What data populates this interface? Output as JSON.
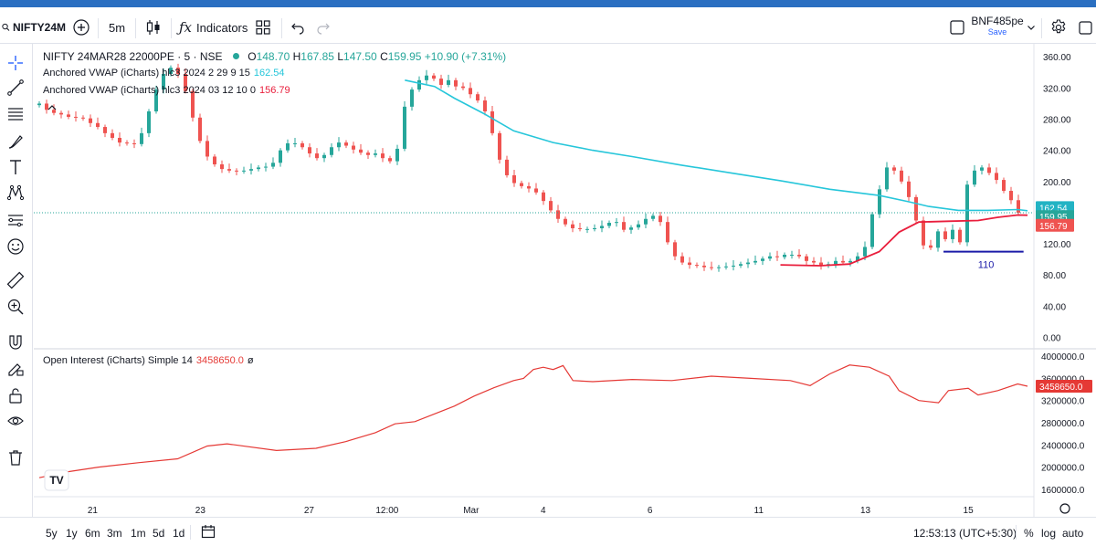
{
  "toolbar": {
    "symbol": "NIFTY24M",
    "interval": "5m",
    "indicators_label": "Indicators",
    "layout_name": "BNF485pe",
    "save_label": "Save"
  },
  "legend": {
    "title": "NIFTY 24MAR28 22000PE · 5 · NSE",
    "ohlc": {
      "o_label": "O",
      "o": "148.70",
      "h_label": "H",
      "h": "167.85",
      "l_label": "L",
      "l": "147.50",
      "c_label": "C",
      "c": "159.95",
      "change": "+10.90 (+7.31%)"
    },
    "vwap1": {
      "label": "Anchored VWAP (iCharts) hlc3 2024 2 29 9 15",
      "value": "162.54"
    },
    "vwap2": {
      "label": "Anchored VWAP (iCharts) hlc3 2024 03 12 10 0",
      "value": "156.79"
    },
    "oi": {
      "label": "Open Interest (iCharts) Simple 14",
      "value": "3458650.0",
      "suffix": "ø"
    }
  },
  "price_labels": {
    "vwap1": "162.54",
    "close": "159.95",
    "vwap2": "156.79",
    "oi": "3458650.0"
  },
  "annotation": {
    "level_label": "110",
    "level_value": 110
  },
  "watermark": "TV",
  "colors": {
    "up": "#26a69a",
    "down": "#ef5350",
    "vwap1": "#26c6da",
    "vwap2": "#e91e3c",
    "oi": "#e53935",
    "hline": "#1a1aa8",
    "close_line": "#26a69a"
  },
  "chart_data": {
    "type": "candlestick",
    "x_ticks": [
      "21",
      "23",
      "27",
      "12:00",
      "Mar",
      "4",
      "6",
      "11",
      "13",
      "15"
    ],
    "price_axis": {
      "ticks": [
        "360.00",
        "320.00",
        "280.00",
        "240.00",
        "200.00",
        "160.00",
        "120.00",
        "80.00",
        "40.00",
        "0.00"
      ],
      "ylim": [
        -10,
        372
      ]
    },
    "oi_axis": {
      "ticks": [
        "4000000.0",
        "3600000.0",
        "3200000.0",
        "2800000.0",
        "2400000.0",
        "2000000.0",
        "1600000.0"
      ],
      "ylim": [
        1500000,
        4100000
      ]
    },
    "price_close": [
      300,
      292,
      288,
      286,
      283,
      282,
      281,
      275,
      270,
      262,
      256,
      250,
      249,
      248,
      262,
      290,
      318,
      338,
      346,
      338,
      316,
      282,
      252,
      232,
      222,
      216,
      214,
      213,
      214,
      216,
      218,
      219,
      224,
      240,
      249,
      249,
      244,
      236,
      230,
      234,
      244,
      250,
      246,
      241,
      237,
      234,
      236,
      230,
      226,
      242,
      296,
      318,
      330,
      336,
      332,
      324,
      330,
      322,
      320,
      312,
      304,
      290,
      262,
      228,
      208,
      198,
      194,
      191,
      186,
      175,
      163,
      152,
      145,
      140,
      139,
      139,
      140,
      143,
      147,
      148,
      138,
      141,
      145,
      152,
      156,
      148,
      122,
      104,
      96,
      93,
      92,
      90,
      89,
      90,
      91,
      92,
      94,
      96,
      98,
      101,
      104,
      103,
      106,
      106,
      104,
      98,
      96,
      92,
      94,
      98,
      96,
      98,
      104,
      116,
      158,
      190,
      218,
      214,
      200,
      180,
      150,
      118,
      115,
      136,
      126,
      138,
      122,
      196,
      214,
      218,
      211,
      202,
      188,
      176,
      159.95
    ],
    "vwap1": [
      [
        0.37,
        330
      ],
      [
        0.4,
        322
      ],
      [
        0.42,
        307
      ],
      [
        0.45,
        287
      ],
      [
        0.48,
        265
      ],
      [
        0.52,
        250
      ],
      [
        0.56,
        240
      ],
      [
        0.6,
        232
      ],
      [
        0.65,
        221
      ],
      [
        0.7,
        211
      ],
      [
        0.75,
        201
      ],
      [
        0.8,
        190
      ],
      [
        0.85,
        182
      ],
      [
        0.88,
        174
      ],
      [
        0.9,
        168
      ],
      [
        0.93,
        163
      ],
      [
        0.96,
        163
      ],
      [
        0.99,
        164
      ],
      [
        1.0,
        162.54
      ]
    ],
    "vwap2": [
      [
        0.75,
        93
      ],
      [
        0.79,
        92
      ],
      [
        0.82,
        94
      ],
      [
        0.85,
        110
      ],
      [
        0.87,
        135
      ],
      [
        0.89,
        148
      ],
      [
        0.92,
        149
      ],
      [
        0.95,
        150
      ],
      [
        0.97,
        154
      ],
      [
        0.99,
        157
      ],
      [
        1.0,
        156.79
      ]
    ],
    "oi": [
      [
        0.0,
        1810000
      ],
      [
        0.03,
        1920000
      ],
      [
        0.06,
        2000000
      ],
      [
        0.1,
        2080000
      ],
      [
        0.14,
        2150000
      ],
      [
        0.17,
        2380000
      ],
      [
        0.19,
        2420000
      ],
      [
        0.24,
        2300000
      ],
      [
        0.28,
        2340000
      ],
      [
        0.31,
        2460000
      ],
      [
        0.34,
        2620000
      ],
      [
        0.36,
        2780000
      ],
      [
        0.38,
        2820000
      ],
      [
        0.4,
        2960000
      ],
      [
        0.42,
        3100000
      ],
      [
        0.44,
        3280000
      ],
      [
        0.46,
        3430000
      ],
      [
        0.48,
        3560000
      ],
      [
        0.49,
        3600000
      ],
      [
        0.5,
        3760000
      ],
      [
        0.51,
        3800000
      ],
      [
        0.52,
        3760000
      ],
      [
        0.53,
        3830000
      ],
      [
        0.54,
        3560000
      ],
      [
        0.56,
        3540000
      ],
      [
        0.6,
        3580000
      ],
      [
        0.64,
        3560000
      ],
      [
        0.68,
        3640000
      ],
      [
        0.72,
        3600000
      ],
      [
        0.76,
        3560000
      ],
      [
        0.78,
        3470000
      ],
      [
        0.8,
        3680000
      ],
      [
        0.82,
        3840000
      ],
      [
        0.84,
        3800000
      ],
      [
        0.86,
        3640000
      ],
      [
        0.87,
        3380000
      ],
      [
        0.89,
        3200000
      ],
      [
        0.91,
        3160000
      ],
      [
        0.92,
        3380000
      ],
      [
        0.94,
        3420000
      ],
      [
        0.95,
        3300000
      ],
      [
        0.97,
        3380000
      ],
      [
        0.99,
        3500000
      ],
      [
        1.0,
        3458650
      ]
    ]
  }
}
